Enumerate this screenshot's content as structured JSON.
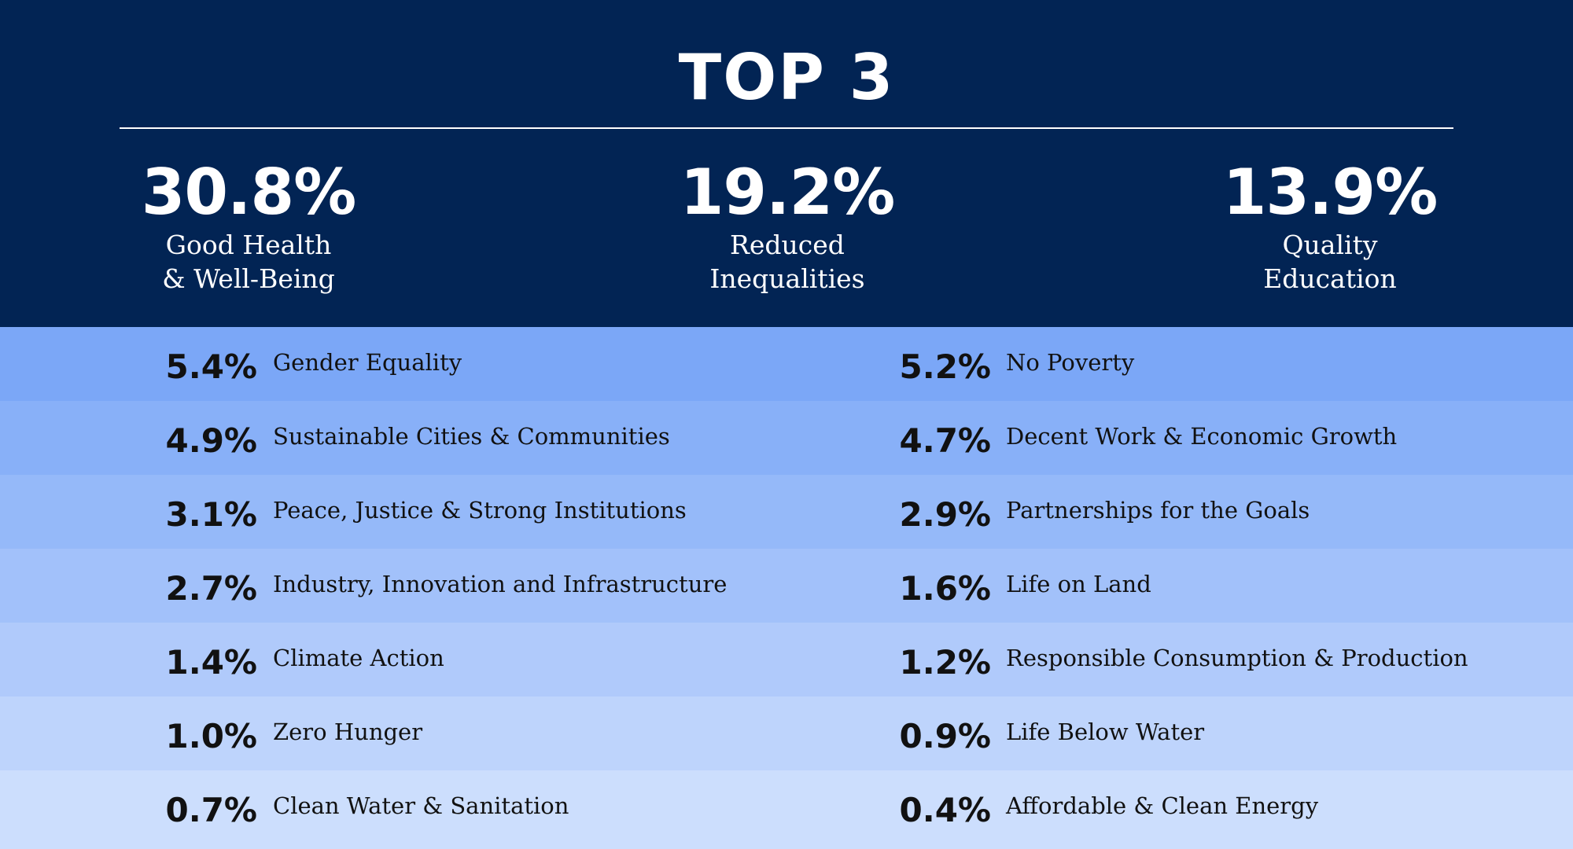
{
  "header": {
    "title": "TOP 3"
  },
  "top3": [
    {
      "value": "30.8%",
      "label": [
        "Good Health",
        "& Well-Being"
      ]
    },
    {
      "value": "19.2%",
      "label": [
        "Reduced",
        "Inequalities"
      ]
    },
    {
      "value": "13.9%",
      "label": [
        "Quality",
        "Education"
      ]
    }
  ],
  "rows": [
    [
      {
        "value": "5.4%",
        "label": "Gender Equality"
      },
      {
        "value": "5.2%",
        "label": "No Poverty"
      }
    ],
    [
      {
        "value": "4.9%",
        "label": "Sustainable Cities & Communities"
      },
      {
        "value": "4.7%",
        "label": "Decent Work & Economic Growth"
      }
    ],
    [
      {
        "value": "3.1%",
        "label": "Peace, Justice & Strong Institutions"
      },
      {
        "value": "2.9%",
        "label": "Partnerships for the Goals"
      }
    ],
    [
      {
        "value": "2.7%",
        "label": "Industry, Innovation and Infrastructure"
      },
      {
        "value": "1.6%",
        "label": "Life on Land"
      }
    ],
    [
      {
        "value": "1.4%",
        "label": "Climate Action"
      },
      {
        "value": "1.2%",
        "label": "Responsible Consumption & Production"
      }
    ],
    [
      {
        "value": "1.0%",
        "label": "Zero Hunger"
      },
      {
        "value": "0.9%",
        "label": "Life Below Water"
      }
    ],
    [
      {
        "value": "0.7%",
        "label": "Clean Water & Sanitation"
      },
      {
        "value": "0.4%",
        "label": "Affordable & Clean Energy"
      }
    ]
  ]
}
